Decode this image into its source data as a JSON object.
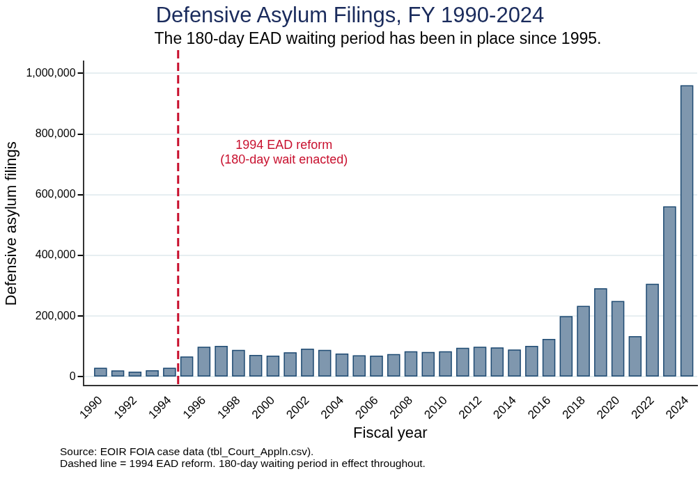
{
  "chart_data": {
    "type": "bar",
    "title": "Defensive Asylum Filings, FY 1990-2024",
    "subtitle": "The 180-day EAD waiting period has been in place since 1995.",
    "xlabel": "Fiscal year",
    "ylabel": "Defensive asylum filings",
    "x": [
      1990,
      1991,
      1992,
      1993,
      1994,
      1995,
      1996,
      1997,
      1998,
      1999,
      2000,
      2001,
      2002,
      2003,
      2004,
      2005,
      2006,
      2007,
      2008,
      2009,
      2010,
      2011,
      2012,
      2013,
      2014,
      2015,
      2016,
      2017,
      2018,
      2019,
      2020,
      2021,
      2022,
      2023,
      2024
    ],
    "values": [
      28000,
      19000,
      15000,
      20000,
      28000,
      65000,
      97000,
      100000,
      87000,
      70000,
      68000,
      79000,
      91000,
      87000,
      75000,
      69000,
      68000,
      73000,
      82000,
      80000,
      82000,
      94000,
      97000,
      95000,
      88000,
      100000,
      123000,
      198000,
      232000,
      290000,
      248000,
      132000,
      305000,
      560000,
      959000
    ],
    "color": "#7f97ae",
    "xlim": [
      1989,
      2024.6
    ],
    "xticks": [
      1990,
      1992,
      1994,
      1996,
      1998,
      2000,
      2002,
      2004,
      2006,
      2008,
      2010,
      2012,
      2014,
      2016,
      2018,
      2020,
      2022,
      2024
    ],
    "ylim": [
      -30000,
      1040000
    ],
    "yticks": [
      {
        "value": 0,
        "label": "0"
      },
      {
        "value": 200000,
        "label": "200,000"
      },
      {
        "value": 400000,
        "label": "400,000"
      },
      {
        "value": 600000,
        "label": "600,000"
      },
      {
        "value": 800000,
        "label": "800,000"
      },
      {
        "value": 1000000,
        "label": "1,000,000"
      }
    ],
    "grid": "y",
    "ref_lines": [
      {
        "axis": "x",
        "value": 1994.5,
        "label": "1994 EAD reform\n(180-day wait enacted)",
        "color": "#c8102e",
        "line_style": "dashed"
      }
    ],
    "annotations": [
      "Source: EOIR FOIA case data (tbl_Court_Appln.csv).",
      "Dashed line = 1994 EAD reform. 180-day waiting period in effect throughout."
    ]
  }
}
